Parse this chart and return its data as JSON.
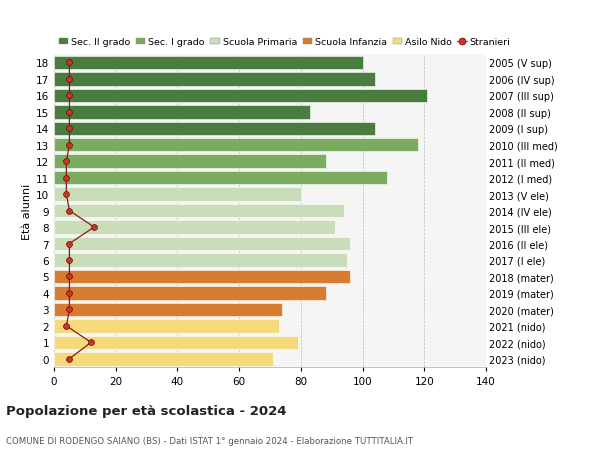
{
  "ages": [
    18,
    17,
    16,
    15,
    14,
    13,
    12,
    11,
    10,
    9,
    8,
    7,
    6,
    5,
    4,
    3,
    2,
    1,
    0
  ],
  "right_labels": [
    "2005 (V sup)",
    "2006 (IV sup)",
    "2007 (III sup)",
    "2008 (II sup)",
    "2009 (I sup)",
    "2010 (III med)",
    "2011 (II med)",
    "2012 (I med)",
    "2013 (V ele)",
    "2014 (IV ele)",
    "2015 (III ele)",
    "2016 (II ele)",
    "2017 (I ele)",
    "2018 (mater)",
    "2019 (mater)",
    "2020 (mater)",
    "2021 (nido)",
    "2022 (nido)",
    "2023 (nido)"
  ],
  "bar_values": [
    100,
    104,
    121,
    83,
    104,
    118,
    88,
    108,
    80,
    94,
    91,
    96,
    95,
    96,
    88,
    74,
    73,
    79,
    71
  ],
  "bar_colors": [
    "#4a7c3f",
    "#4a7c3f",
    "#4a7c3f",
    "#4a7c3f",
    "#4a7c3f",
    "#7aab5e",
    "#7aab5e",
    "#7aab5e",
    "#c8ddb8",
    "#c8ddb8",
    "#c8ddb8",
    "#c8ddb8",
    "#c8ddb8",
    "#d97b2e",
    "#d97b2e",
    "#d97b2e",
    "#f5d97a",
    "#f5d97a",
    "#f5d97a"
  ],
  "stranieri_values": [
    5,
    5,
    5,
    5,
    5,
    5,
    4,
    4,
    4,
    5,
    13,
    5,
    5,
    5,
    5,
    5,
    4,
    12,
    5
  ],
  "legend_labels": [
    "Sec. II grado",
    "Sec. I grado",
    "Scuola Primaria",
    "Scuola Infanzia",
    "Asilo Nido",
    "Stranieri"
  ],
  "legend_colors": [
    "#4a7c3f",
    "#7aab5e",
    "#c8ddb8",
    "#d97b2e",
    "#f5d97a",
    "#c0392b"
  ],
  "title": "Popolazione per età scolastica - 2024",
  "subtitle": "COMUNE DI RODENGO SAIANO (BS) - Dati ISTAT 1° gennaio 2024 - Elaborazione TUTTITALIA.IT",
  "ylabel": "Età alunni",
  "xlim": [
    0,
    140
  ],
  "xticks": [
    0,
    20,
    40,
    60,
    80,
    100,
    120,
    140
  ],
  "bg_color": "#ffffff",
  "plot_bg_color": "#f5f5f5"
}
